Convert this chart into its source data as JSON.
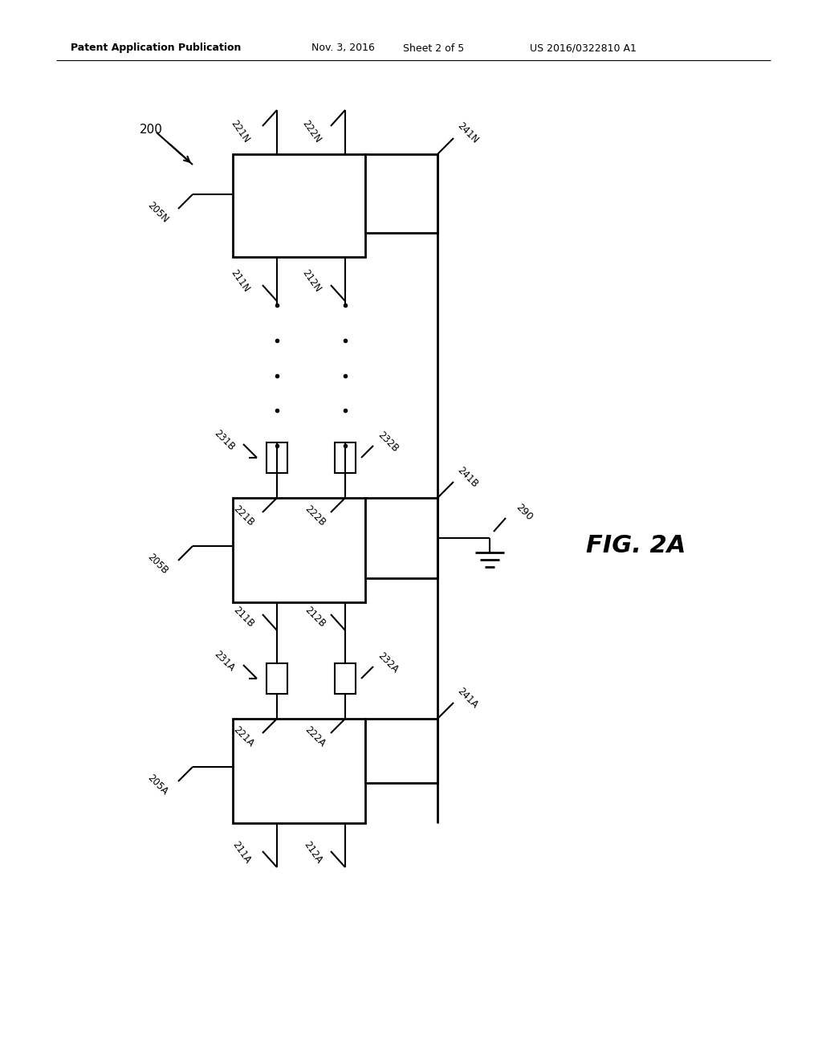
{
  "bg_color": "#ffffff",
  "header_text": "Patent Application Publication",
  "header_date": "Nov. 3, 2016",
  "header_sheet": "Sheet 2 of 5",
  "header_patent": "US 2016/0322810 A1",
  "fig_label": "FIG. 2A",
  "line_color": "#000000",
  "lw": 1.5,
  "lw_thick": 2.0
}
